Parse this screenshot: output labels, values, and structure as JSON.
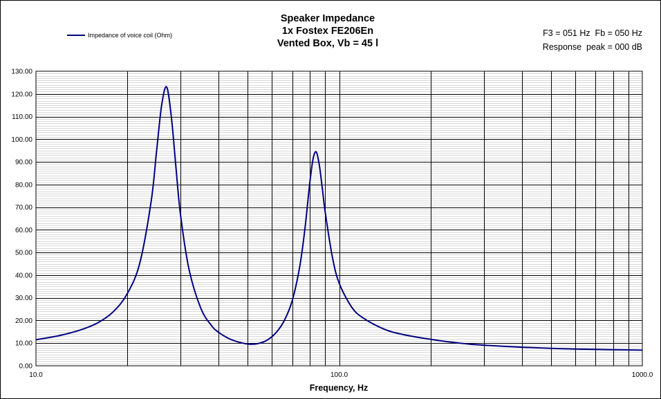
{
  "chart_data": {
    "type": "line",
    "title_lines": [
      "Speaker Impedance",
      "1x Fostex FE206En",
      "Vented Box, Vb = 45 l"
    ],
    "info_lines": [
      "F3 = 051 Hz  Fb = 050 Hz",
      "Response  peak = 000 dB"
    ],
    "xlabel": "Frequency, Hz",
    "ylabel": "",
    "x_scale": "log",
    "xlim": [
      10,
      1000
    ],
    "ylim": [
      0,
      130
    ],
    "x_tick_labels": [
      "10.0",
      "100.0",
      "1000.0"
    ],
    "y_tick_labels": [
      "0.00",
      "10.00",
      "20.00",
      "30.00",
      "40.00",
      "50.00",
      "60.00",
      "70.00",
      "80.00",
      "90.00",
      "100.00",
      "110.00",
      "120.00",
      "130.00"
    ],
    "grid": true,
    "legend_position": "top-left",
    "colors": {
      "series": "#000080",
      "grid": "#000000",
      "minor_grid": "#b0b0b0"
    },
    "series": [
      {
        "name": "Impedance of voice coil (Ohm)",
        "x": [
          10,
          12,
          14,
          16,
          18,
          20,
          22,
          24,
          25,
          26,
          27,
          28,
          29,
          30,
          32,
          35,
          38,
          40,
          43,
          46,
          50,
          54,
          58,
          62,
          66,
          70,
          74,
          77,
          80,
          82,
          84,
          86,
          88,
          90,
          95,
          100,
          110,
          120,
          140,
          160,
          200,
          250,
          300,
          400,
          500,
          600,
          700,
          800,
          900,
          1000
        ],
        "values": [
          11.5,
          13.4,
          15.8,
          19.0,
          23.9,
          31.8,
          45.3,
          72.8,
          94.9,
          115.4,
          123.0,
          109.1,
          86.6,
          66.3,
          42.4,
          25.3,
          17.6,
          14.8,
          12.2,
          10.7,
          9.6,
          9.8,
          11.4,
          14.7,
          20.1,
          28.7,
          43.2,
          59.7,
          80.6,
          91.2,
          94.4,
          88.7,
          78.3,
          67.6,
          48.0,
          36.5,
          25.9,
          21.1,
          16.3,
          14.0,
          11.7,
          10.0,
          9.1,
          8.2,
          7.7,
          7.4,
          7.25,
          7.1,
          7.0,
          6.9
        ]
      }
    ]
  }
}
